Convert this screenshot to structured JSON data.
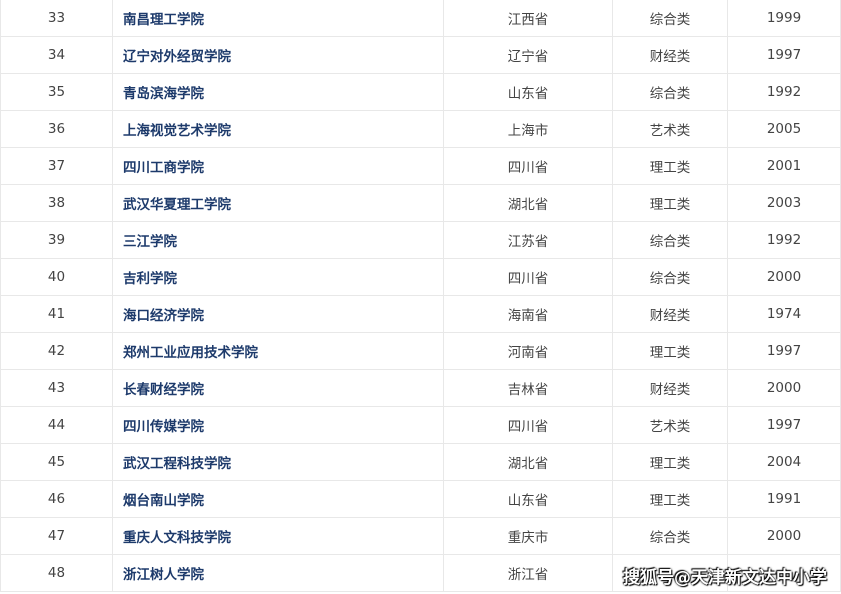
{
  "rows": [
    {
      "no": "33",
      "name": "南昌理工学院",
      "province": "江西省",
      "type": "综合类",
      "year": "1999"
    },
    {
      "no": "34",
      "name": "辽宁对外经贸学院",
      "province": "辽宁省",
      "type": "财经类",
      "year": "1997"
    },
    {
      "no": "35",
      "name": "青岛滨海学院",
      "province": "山东省",
      "type": "综合类",
      "year": "1992"
    },
    {
      "no": "36",
      "name": "上海视觉艺术学院",
      "province": "上海市",
      "type": "艺术类",
      "year": "2005"
    },
    {
      "no": "37",
      "name": "四川工商学院",
      "province": "四川省",
      "type": "理工类",
      "year": "2001"
    },
    {
      "no": "38",
      "name": "武汉华夏理工学院",
      "province": "湖北省",
      "type": "理工类",
      "year": "2003"
    },
    {
      "no": "39",
      "name": "三江学院",
      "province": "江苏省",
      "type": "综合类",
      "year": "1992"
    },
    {
      "no": "40",
      "name": "吉利学院",
      "province": "四川省",
      "type": "综合类",
      "year": "2000"
    },
    {
      "no": "41",
      "name": "海口经济学院",
      "province": "海南省",
      "type": "财经类",
      "year": "1974"
    },
    {
      "no": "42",
      "name": "郑州工业应用技术学院",
      "province": "河南省",
      "type": "理工类",
      "year": "1997"
    },
    {
      "no": "43",
      "name": "长春财经学院",
      "province": "吉林省",
      "type": "财经类",
      "year": "2000"
    },
    {
      "no": "44",
      "name": "四川传媒学院",
      "province": "四川省",
      "type": "艺术类",
      "year": "1997"
    },
    {
      "no": "45",
      "name": "武汉工程科技学院",
      "province": "湖北省",
      "type": "理工类",
      "year": "2004"
    },
    {
      "no": "46",
      "name": "烟台南山学院",
      "province": "山东省",
      "type": "理工类",
      "year": "1991"
    },
    {
      "no": "47",
      "name": "重庆人文科技学院",
      "province": "重庆市",
      "type": "综合类",
      "year": "2000"
    },
    {
      "no": "48",
      "name": "浙江树人学院",
      "province": "浙江省",
      "type": "",
      "year": ""
    }
  ],
  "watermark": "搜狐号@天津新文达中小学"
}
